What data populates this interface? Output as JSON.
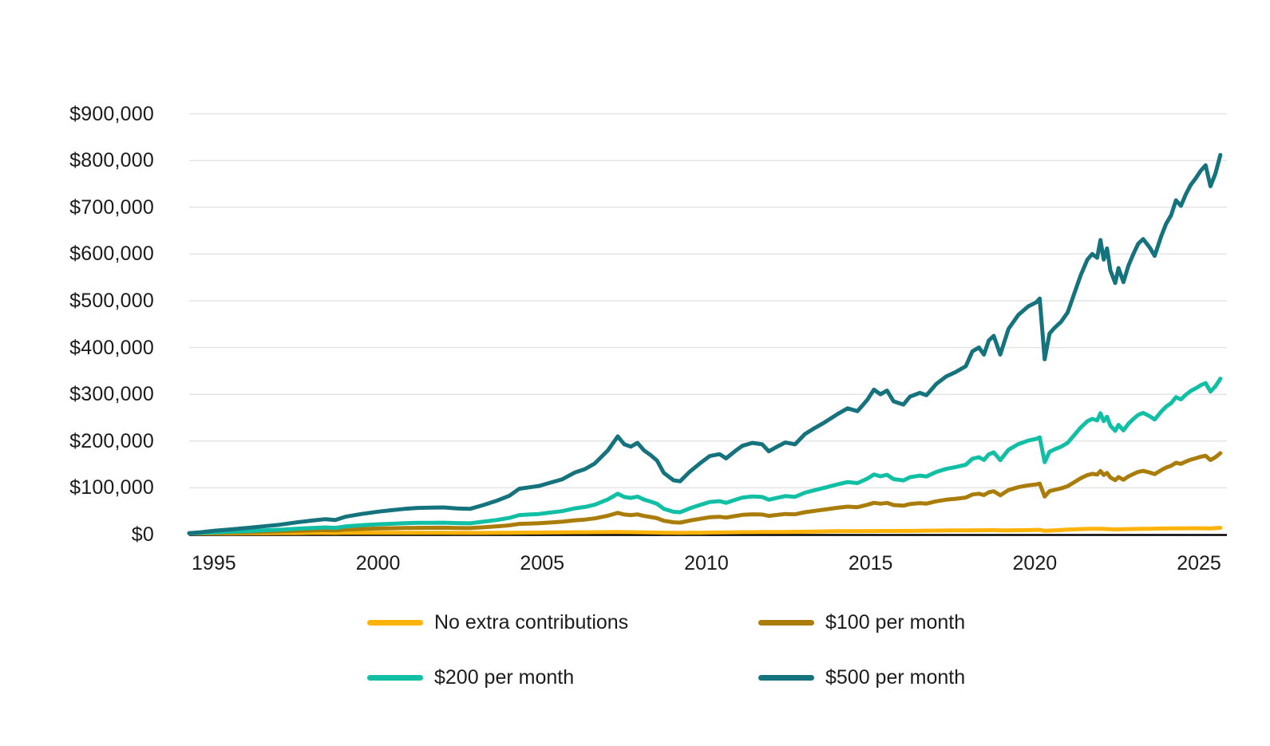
{
  "chart_data": {
    "type": "line",
    "title": "",
    "xlabel": "",
    "ylabel": "",
    "xlim": [
      1994.25,
      2025.85
    ],
    "ylim": [
      0,
      950000
    ],
    "grid": "horizontal",
    "legend_position": "bottom",
    "colors": {
      "no_extra": "#FFB30A",
      "per_100": "#AA7D0A",
      "per_200": "#11BFA5",
      "per_500": "#14737C",
      "gridline": "#E4E4E4",
      "axis": "#000000",
      "text": "#1B1B1B"
    },
    "y_ticks": [
      {
        "value": 0,
        "label": "$0"
      },
      {
        "value": 100000,
        "label": "$100,000"
      },
      {
        "value": 200000,
        "label": "$200,000"
      },
      {
        "value": 300000,
        "label": "$300,000"
      },
      {
        "value": 400000,
        "label": "$400,000"
      },
      {
        "value": 500000,
        "label": "$500,000"
      },
      {
        "value": 600000,
        "label": "$600,000"
      },
      {
        "value": 700000,
        "label": "$700,000"
      },
      {
        "value": 800000,
        "label": "$800,000"
      },
      {
        "value": 900000,
        "label": "$900,000"
      }
    ],
    "x_ticks": [
      {
        "value": 1995,
        "label": "1995"
      },
      {
        "value": 2000,
        "label": "2000"
      },
      {
        "value": 2005,
        "label": "2005"
      },
      {
        "value": 2010,
        "label": "2010"
      },
      {
        "value": 2015,
        "label": "2015"
      },
      {
        "value": 2020,
        "label": "2020"
      },
      {
        "value": 2025,
        "label": "2025"
      }
    ],
    "x": [
      1994.25,
      1994.6,
      1995,
      1995.5,
      1996,
      1996.5,
      1997,
      1997.5,
      1998,
      1998.4,
      1998.7,
      1999,
      1999.5,
      2000,
      2000.4,
      2000.8,
      2001.2,
      2001.6,
      2002,
      2002.4,
      2002.8,
      2003.2,
      2003.6,
      2004,
      2004.3,
      2004.6,
      2004.9,
      2005.2,
      2005.6,
      2006,
      2006.3,
      2006.6,
      2007,
      2007.3,
      2007.5,
      2007.7,
      2007.9,
      2008.1,
      2008.3,
      2008.5,
      2008.7,
      2009,
      2009.2,
      2009.5,
      2009.8,
      2010.1,
      2010.4,
      2010.6,
      2010.9,
      2011.1,
      2011.4,
      2011.7,
      2011.9,
      2012.1,
      2012.4,
      2012.7,
      2013,
      2013.3,
      2013.6,
      2014,
      2014.3,
      2014.6,
      2014.9,
      2015.1,
      2015.3,
      2015.5,
      2015.7,
      2016,
      2016.2,
      2016.5,
      2016.7,
      2017,
      2017.3,
      2017.6,
      2017.9,
      2018.1,
      2018.3,
      2018.45,
      2018.6,
      2018.75,
      2018.95,
      2019.2,
      2019.5,
      2019.8,
      2020.05,
      2020.15,
      2020.3,
      2020.45,
      2020.6,
      2020.8,
      2021,
      2021.2,
      2021.4,
      2021.6,
      2021.75,
      2021.9,
      2022,
      2022.1,
      2022.2,
      2022.3,
      2022.45,
      2022.55,
      2022.7,
      2022.85,
      2023,
      2023.15,
      2023.3,
      2023.5,
      2023.65,
      2023.85,
      2024,
      2024.15,
      2024.3,
      2024.45,
      2024.6,
      2024.75,
      2024.9,
      2025.05,
      2025.2,
      2025.35,
      2025.5,
      2025.65
    ],
    "series": [
      {
        "name": "No extra contributions",
        "color": "#FFB30A",
        "values": [
          2500,
          2600,
          2700,
          2800,
          2900,
          3000,
          3200,
          3300,
          3500,
          3600,
          3400,
          3700,
          3900,
          4000,
          3900,
          3900,
          3800,
          3800,
          3700,
          3600,
          3500,
          3600,
          3800,
          4000,
          4100,
          4200,
          4200,
          4500,
          4700,
          4900,
          5000,
          5200,
          5300,
          5500,
          5300,
          5100,
          4900,
          4700,
          4400,
          4200,
          4000,
          3700,
          3500,
          3800,
          4000,
          4300,
          4500,
          4700,
          4900,
          5100,
          5200,
          5400,
          5500,
          5600,
          5700,
          5900,
          6000,
          6400,
          6900,
          7100,
          7200,
          7300,
          7500,
          7500,
          7600,
          7700,
          7700,
          7800,
          7900,
          8200,
          8300,
          8500,
          8700,
          8800,
          9000,
          9100,
          9200,
          9300,
          9400,
          9500,
          8800,
          9000,
          9300,
          9600,
          9900,
          10000,
          8000,
          8500,
          9000,
          9800,
          10500,
          11100,
          11700,
          12100,
          12300,
          12400,
          12500,
          12200,
          11800,
          11500,
          11000,
          11200,
          11500,
          11700,
          12000,
          12200,
          12300,
          12500,
          12700,
          12900,
          13000,
          13100,
          13200,
          13200,
          13300,
          13400,
          13400,
          13500,
          13300,
          13000,
          13800,
          14500
        ]
      },
      {
        "name": "$100 per month",
        "color": "#AA7D0A",
        "values": [
          2600,
          3100,
          3800,
          4400,
          5100,
          5900,
          6800,
          7800,
          8800,
          9500,
          8900,
          10600,
          11900,
          13000,
          13500,
          14100,
          14400,
          14500,
          14600,
          14100,
          13800,
          15500,
          17400,
          19800,
          22900,
          23600,
          24200,
          25600,
          27400,
          30500,
          32000,
          34600,
          40200,
          46400,
          42800,
          41700,
          43100,
          39800,
          37500,
          35000,
          29600,
          26200,
          25600,
          30000,
          33600,
          37000,
          38000,
          36400,
          39900,
          42100,
          43400,
          42900,
          40000,
          41700,
          44000,
          43300,
          47800,
          50700,
          53500,
          57300,
          59800,
          58600,
          63600,
          68000,
          66100,
          67800,
          63200,
          61800,
          65300,
          67200,
          66200,
          71200,
          74600,
          76600,
          79200,
          85700,
          87400,
          84400,
          90500,
          92600,
          84000,
          95200,
          101400,
          105300,
          107300,
          109000,
          81400,
          92800,
          95600,
          98800,
          103400,
          111900,
          120400,
          127300,
          129800,
          128300,
          136000,
          127400,
          131800,
          122200,
          116400,
          123000,
          117200,
          124400,
          129600,
          134200,
          136200,
          132800,
          129400,
          137900,
          143400,
          147100,
          153600,
          151200,
          156200,
          160300,
          163100,
          166400,
          168600,
          159400,
          165400,
          174000
        ]
      },
      {
        "name": "$200 per month",
        "color": "#11BFA5",
        "values": [
          2700,
          3600,
          4800,
          6100,
          7300,
          8800,
          10300,
          12400,
          14100,
          15400,
          14400,
          17400,
          19900,
          22000,
          23100,
          24300,
          25100,
          25300,
          25400,
          24600,
          24100,
          27400,
          31100,
          35600,
          41700,
          42900,
          44100,
          46700,
          50000,
          56100,
          59000,
          63900,
          75200,
          87300,
          80400,
          78300,
          81300,
          74800,
          70600,
          65700,
          55200,
          48600,
          47700,
          56300,
          63200,
          69800,
          71500,
          68000,
          74900,
          79100,
          81500,
          80400,
          74500,
          77800,
          82200,
          80700,
          89600,
          95000,
          100100,
          107500,
          112300,
          110000,
          119700,
          128500,
          124600,
          127800,
          118600,
          115900,
          122700,
          126100,
          124200,
          133900,
          140400,
          144500,
          149400,
          162300,
          165500,
          159600,
          171600,
          175700,
          159300,
          181400,
          193600,
          201000,
          204700,
          208000,
          154800,
          177100,
          182200,
          187900,
          196300,
          212700,
          229000,
          242500,
          247400,
          244200,
          259500,
          242500,
          251900,
          232900,
          221800,
          234700,
          222900,
          237000,
          247200,
          256100,
          260200,
          253100,
          246000,
          262900,
          273800,
          281100,
          293900,
          289100,
          299200,
          307200,
          312800,
          319300,
          324000,
          305800,
          317100,
          333500
        ]
      },
      {
        "name": "$500 per month",
        "color": "#14737C",
        "values": [
          3000,
          5000,
          8000,
          11000,
          14000,
          17500,
          21000,
          26000,
          30000,
          33000,
          31000,
          38000,
          44000,
          49000,
          52000,
          55000,
          57000,
          57500,
          58000,
          56000,
          55000,
          63000,
          72000,
          83000,
          98000,
          101000,
          104000,
          110000,
          118000,
          133000,
          140000,
          152000,
          180000,
          210000,
          193000,
          188000,
          196000,
          180000,
          170000,
          158000,
          132000,
          116000,
          114000,
          135000,
          152000,
          168000,
          172000,
          163000,
          180000,
          190000,
          196000,
          193000,
          178000,
          186000,
          197000,
          193000,
          215000,
          228000,
          240000,
          258000,
          270000,
          264000,
          288000,
          310000,
          300000,
          308000,
          285000,
          278000,
          295000,
          303000,
          298000,
          322000,
          338000,
          348000,
          360000,
          392000,
          400000,
          385000,
          415000,
          425000,
          385000,
          440000,
          470000,
          488000,
          497000,
          505000,
          375000,
          430000,
          442000,
          455000,
          475000,
          515000,
          555000,
          588000,
          600000,
          592000,
          630000,
          588000,
          612000,
          565000,
          538000,
          570000,
          540000,
          575000,
          600000,
          622000,
          632000,
          614000,
          596000,
          638000,
          665000,
          683000,
          715000,
          703000,
          728000,
          748000,
          762000,
          778000,
          790000,
          745000,
          772000,
          812000
        ]
      }
    ]
  },
  "legend": {
    "items": [
      {
        "label": "No extra contributions",
        "color": "#FFB30A"
      },
      {
        "label": "$100 per month",
        "color": "#AA7D0A"
      },
      {
        "label": "$200 per month",
        "color": "#11BFA5"
      },
      {
        "label": "$500 per month",
        "color": "#14737C"
      }
    ]
  }
}
